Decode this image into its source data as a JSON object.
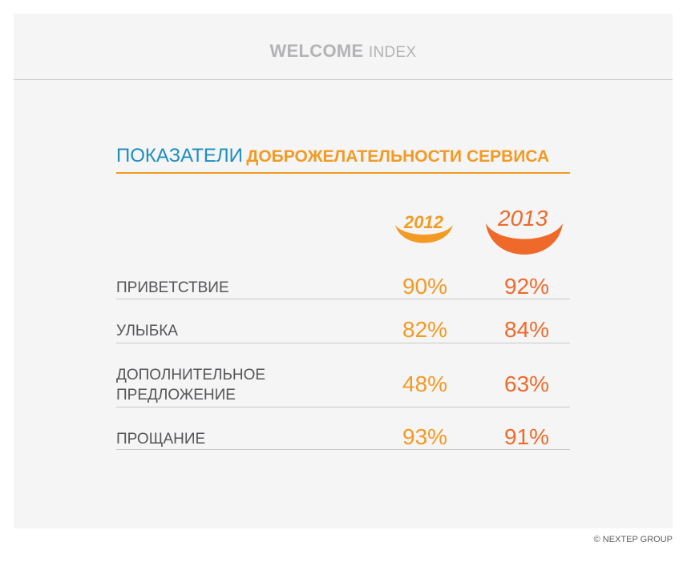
{
  "header": {
    "brand_bold": "WELCOME",
    "brand_light": "INDEX"
  },
  "title": {
    "part1": "ПОКАЗАТЕЛИ",
    "part2": "ДОБРОЖЕЛАТЕЛЬНОСТИ СЕРВИСА"
  },
  "colors": {
    "year_2012": "#f29a24",
    "year_2013": "#ef6a2a",
    "title_blue": "#1d8dc0"
  },
  "chart_data": {
    "type": "table",
    "title": "ПОКАЗАТЕЛИ ДОБРОЖЕЛАТЕЛЬНОСТИ СЕРВИСА",
    "columns": [
      "2012",
      "2013"
    ],
    "categories": [
      "ПРИВЕТСТВИЕ",
      "УЛЫБКА",
      "ДОПОЛНИТЕЛЬНОЕ ПРЕДЛОЖЕНИЕ",
      "ПРОЩАНИЕ"
    ],
    "series": [
      {
        "name": "2012",
        "values": [
          90,
          82,
          48,
          93
        ]
      },
      {
        "name": "2013",
        "values": [
          92,
          84,
          63,
          91
        ]
      }
    ],
    "display": {
      "2012": [
        "90%",
        "82%",
        "48%",
        "93%"
      ],
      "2013": [
        "92%",
        "84%",
        "63%",
        "91%"
      ]
    }
  },
  "rows": [
    {
      "label": "ПРИВЕТСТВИЕ",
      "v2012": "90%",
      "v2013": "92%"
    },
    {
      "label": "УЛЫБКА",
      "v2012": "82%",
      "v2013": "84%"
    },
    {
      "label": "ДОПОЛНИТЕЛЬНОЕ\nПРЕДЛОЖЕНИЕ",
      "v2012": "48%",
      "v2013": "63%"
    },
    {
      "label": "ПРОЩАНИЕ",
      "v2012": "93%",
      "v2013": "91%"
    }
  ],
  "years": {
    "y2012": "2012",
    "y2013": "2013"
  },
  "footer": {
    "copyright": "© NEXTEP GROUP"
  }
}
